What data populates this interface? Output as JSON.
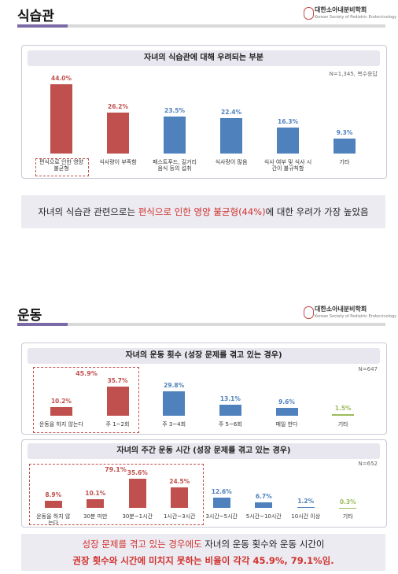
{
  "logo": {
    "name": "대한소아내분비학회",
    "sub": "Korean Society of Pediatric Endocrinology"
  },
  "sections": [
    {
      "title": "식습관",
      "summary": [
        "자녀의 식습관 관련으로는 ",
        "편식으로 인한 영양 불균형(44%)",
        "에 대한 우려가 가장 높았음"
      ]
    },
    {
      "title": "운동",
      "summary": [
        "성장 문제를 겪고 있는 경우에도",
        " 자녀의 운동 횟수와 운동 시간이",
        "권장 횟수와 시간에 미치지 못하는 비율이 각각 45.9%, 79.1%임."
      ]
    }
  ],
  "chart_data": [
    {
      "type": "bar",
      "title": "자녀의 식습관에 대해 우려되는 부분",
      "note": "N=1,345, 복수응답",
      "categories": [
        "편식으로 인한 영양 불균형",
        "식사량이 부족함",
        "패스트푸드, 길거리 음식 등의 섭취",
        "식사량이 많음",
        "식사 여부 및 식사 시간이 불규칙함",
        "기타"
      ],
      "values": [
        44.0,
        26.2,
        23.5,
        22.4,
        16.3,
        9.3
      ],
      "value_labels": [
        "44.0%",
        "26.2%",
        "23.5%",
        "22.4%",
        "16.3%",
        "9.3%"
      ],
      "colors": [
        "#c0504d",
        "#c0504d",
        "#4f81bd",
        "#4f81bd",
        "#4f81bd",
        "#4f81bd"
      ],
      "ylim": [
        0,
        50
      ]
    },
    {
      "type": "bar",
      "title": "자녀의 운동 횟수 (성장 문제를 겪고 있는 경우)",
      "note": "N=647",
      "group_label": "45.9%",
      "categories": [
        "운동을 하지 않는다",
        "주 1~2회",
        "주 3~4회",
        "주 5~6회",
        "매일 한다",
        "기타"
      ],
      "values": [
        10.2,
        35.7,
        29.8,
        13.1,
        9.6,
        1.5
      ],
      "value_labels": [
        "10.2%",
        "35.7%",
        "29.8%",
        "13.1%",
        "9.6%",
        "1.5%"
      ],
      "colors": [
        "#c0504d",
        "#c0504d",
        "#4f81bd",
        "#4f81bd",
        "#4f81bd",
        "#9bbb59"
      ],
      "ylim": [
        0,
        40
      ]
    },
    {
      "type": "bar",
      "title": "자녀의 주간 운동 시간 (성장 문제를 겪고 있는 경우)",
      "note": "N=652",
      "group_label": "79.1%",
      "categories": [
        "운동을 하지 않는다",
        "30분 미만",
        "30분~1시간",
        "1시간~3시간",
        "3시간~5시간",
        "5시간~10시간",
        "10시간 이상",
        "기타"
      ],
      "values": [
        8.9,
        10.1,
        35.6,
        24.5,
        12.6,
        6.7,
        1.2,
        0.3
      ],
      "value_labels": [
        "8.9%",
        "10.1%",
        "35.6%",
        "24.5%",
        "12.6%",
        "6.7%",
        "1.2%",
        "0.3%"
      ],
      "colors": [
        "#c0504d",
        "#c0504d",
        "#c0504d",
        "#c0504d",
        "#4f81bd",
        "#4f81bd",
        "#4f81bd",
        "#9bbb59"
      ],
      "ylim": [
        0,
        40
      ]
    }
  ]
}
